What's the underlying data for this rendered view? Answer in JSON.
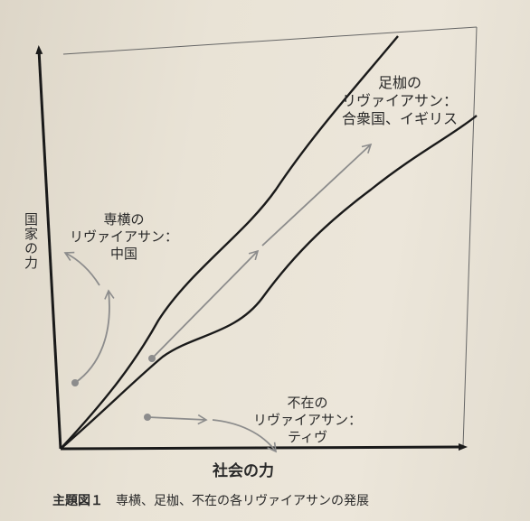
{
  "axes": {
    "y_label": "国家の力",
    "x_label": "社会の力"
  },
  "labels": {
    "despotic": [
      "専横の",
      "リヴァイアサン：",
      "中国"
    ],
    "shackled": [
      "足枷の",
      "リヴァイアサン：",
      "合衆国、イギリス"
    ],
    "absent": [
      "不在の",
      "リヴァイアサン：",
      "ティヴ"
    ]
  },
  "caption": {
    "figure_number": "主題図１",
    "text": "専横、足枷、不在の各リヴァイアサンの発展"
  },
  "colors": {
    "ink": "#1a1a1a",
    "arrow_gray": "#8c8c8c",
    "paper": "#e9e3d6"
  }
}
